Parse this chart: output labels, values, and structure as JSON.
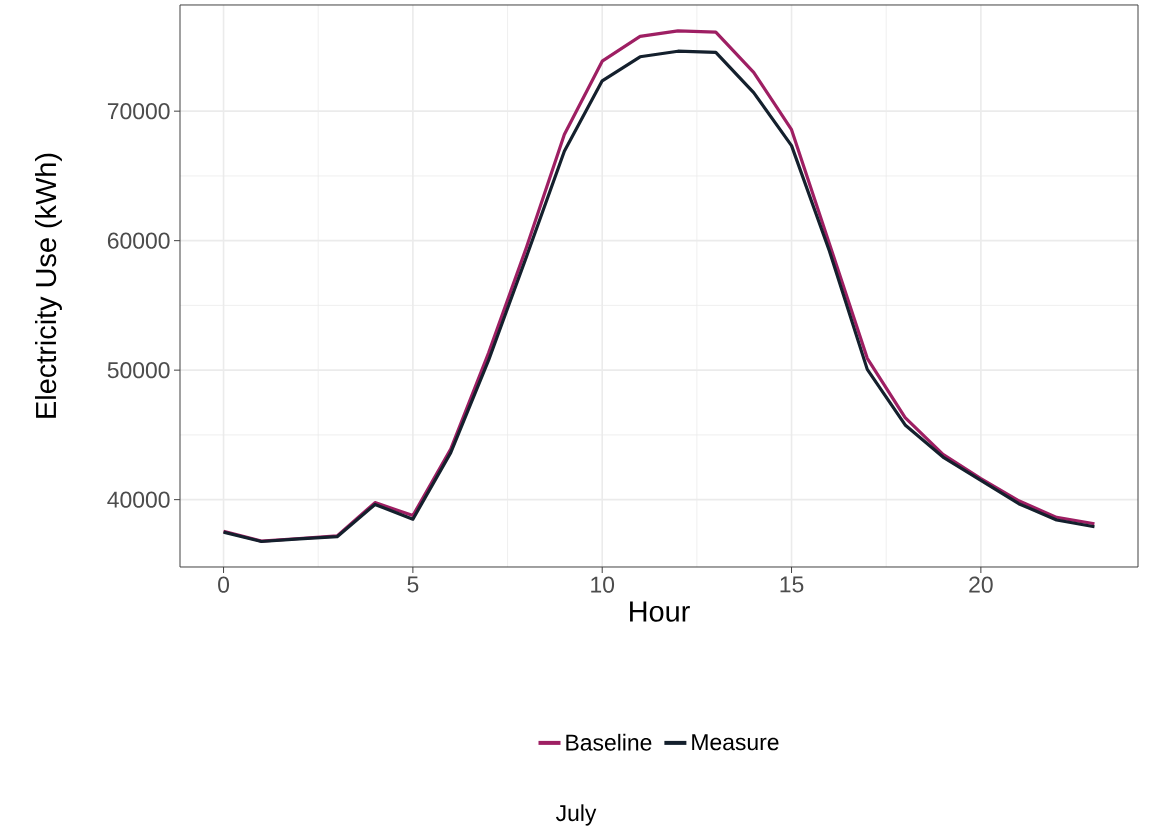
{
  "chart_data": {
    "type": "line",
    "xlabel": "Hour",
    "ylabel": "Electricity Use (kWh)",
    "x": [
      0,
      1,
      2,
      3,
      4,
      5,
      6,
      7,
      8,
      9,
      10,
      11,
      12,
      13,
      14,
      15,
      16,
      17,
      18,
      19,
      20,
      21,
      22,
      23
    ],
    "series": [
      {
        "name": "Baseline",
        "color": "#9e1f63",
        "values": [
          37550,
          36800,
          37000,
          37200,
          39770,
          38770,
          43910,
          51340,
          59490,
          68200,
          73860,
          75770,
          76200,
          76110,
          73000,
          68570,
          59770,
          50910,
          46340,
          43490,
          41630,
          39910,
          38630,
          38140
        ]
      },
      {
        "name": "Measure",
        "color": "#14202d",
        "values": [
          37490,
          36770,
          36970,
          37140,
          39630,
          38490,
          43630,
          50770,
          58770,
          66910,
          72340,
          74200,
          74630,
          74540,
          71430,
          67340,
          59200,
          50060,
          45770,
          43290,
          41490,
          39690,
          38430,
          37910
        ]
      }
    ],
    "xlim": [
      -1.15,
      24.15
    ],
    "ylim": [
      34800,
      78200
    ],
    "xticks": [
      0,
      5,
      10,
      15,
      20
    ],
    "yticks": [
      40000,
      50000,
      60000,
      70000
    ],
    "grid": true,
    "legend": "bottom",
    "marker": "none",
    "line_style": "solid",
    "annotations": [
      "July"
    ]
  }
}
